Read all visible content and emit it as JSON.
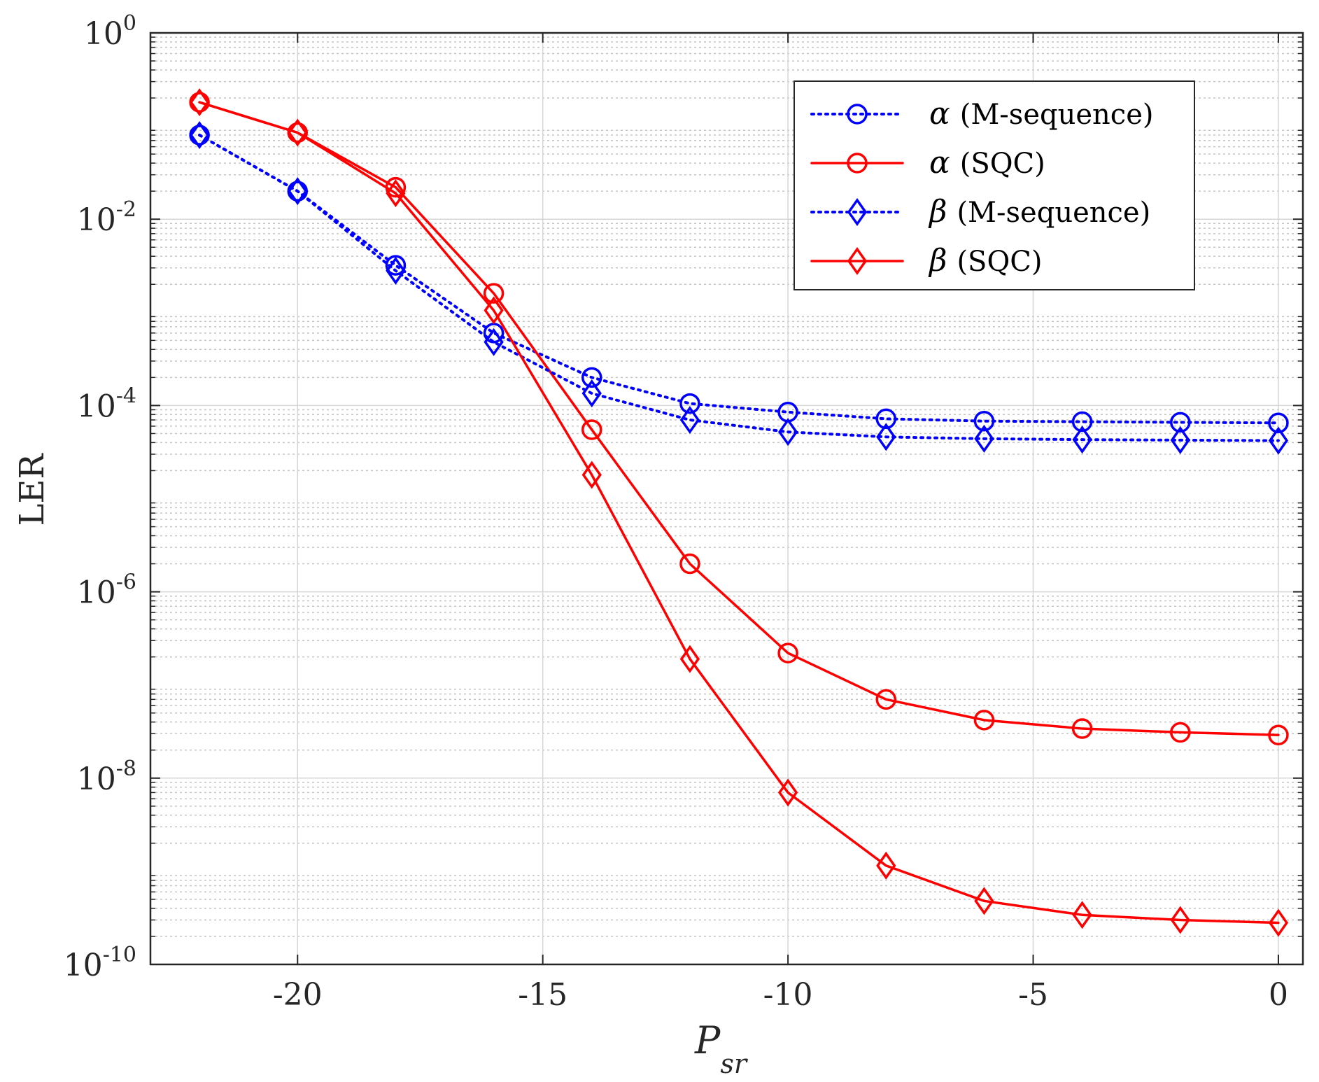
{
  "chart_data": {
    "type": "line",
    "xlabel": "P",
    "xlabel_sub": "sr",
    "ylabel": "LER",
    "xlim": [
      -23,
      0.5
    ],
    "ylim_log10": [
      -10,
      0
    ],
    "yscale": "log",
    "grid": true,
    "minor_grid": true,
    "legend_position": "top-right",
    "x_ticks": [
      -20,
      -15,
      -10,
      -5,
      0
    ],
    "x_tick_labels": [
      "-20",
      "-15",
      "-10",
      "-5",
      "0"
    ],
    "y_ticks": [
      {
        "exp": 0,
        "base": "10",
        "power": "0"
      },
      {
        "exp": -2,
        "base": "10",
        "power": "-2"
      },
      {
        "exp": -4,
        "base": "10",
        "power": "-4"
      },
      {
        "exp": -6,
        "base": "10",
        "power": "-6"
      },
      {
        "exp": -8,
        "base": "10",
        "power": "-8"
      },
      {
        "exp": -10,
        "base": "10",
        "power": "-10"
      }
    ],
    "x": [
      -22,
      -20,
      -18,
      -16,
      -14,
      -12,
      -10,
      -8,
      -6,
      -4,
      -2,
      0
    ],
    "series": [
      {
        "name": "α (M-sequence)",
        "symbol": "α",
        "label": "(M-sequence)",
        "color": "#0000ff",
        "dash": "dotted",
        "marker": "circle",
        "values": [
          0.08,
          0.02,
          0.0032,
          0.0006,
          0.0002,
          0.000105,
          8.5e-05,
          7.2e-05,
          6.8e-05,
          6.7e-05,
          6.6e-05,
          6.5e-05
        ]
      },
      {
        "name": "α (SQC)",
        "symbol": "α",
        "label": "(SQC)",
        "color": "#ff0000",
        "dash": "solid",
        "marker": "circle",
        "values": [
          0.18,
          0.085,
          0.022,
          0.0016,
          5.5e-05,
          2e-06,
          2.2e-07,
          7e-08,
          4.2e-08,
          3.4e-08,
          3.1e-08,
          2.9e-08
        ]
      },
      {
        "name": "β (M-sequence)",
        "symbol": "β",
        "label": "(M-sequence)",
        "color": "#0000ff",
        "dash": "dotted",
        "marker": "diamond",
        "values": [
          0.08,
          0.02,
          0.0028,
          0.00048,
          0.000135,
          7e-05,
          5.2e-05,
          4.6e-05,
          4.4e-05,
          4.3e-05,
          4.25e-05,
          4.2e-05
        ]
      },
      {
        "name": "β (SQC)",
        "symbol": "β",
        "label": "(SQC)",
        "color": "#ff0000",
        "dash": "solid",
        "marker": "diamond",
        "values": [
          0.18,
          0.085,
          0.019,
          0.00105,
          1.8e-05,
          1.9e-07,
          7e-09,
          1.15e-09,
          4.8e-10,
          3.4e-10,
          3e-10,
          2.8e-10
        ]
      }
    ]
  }
}
